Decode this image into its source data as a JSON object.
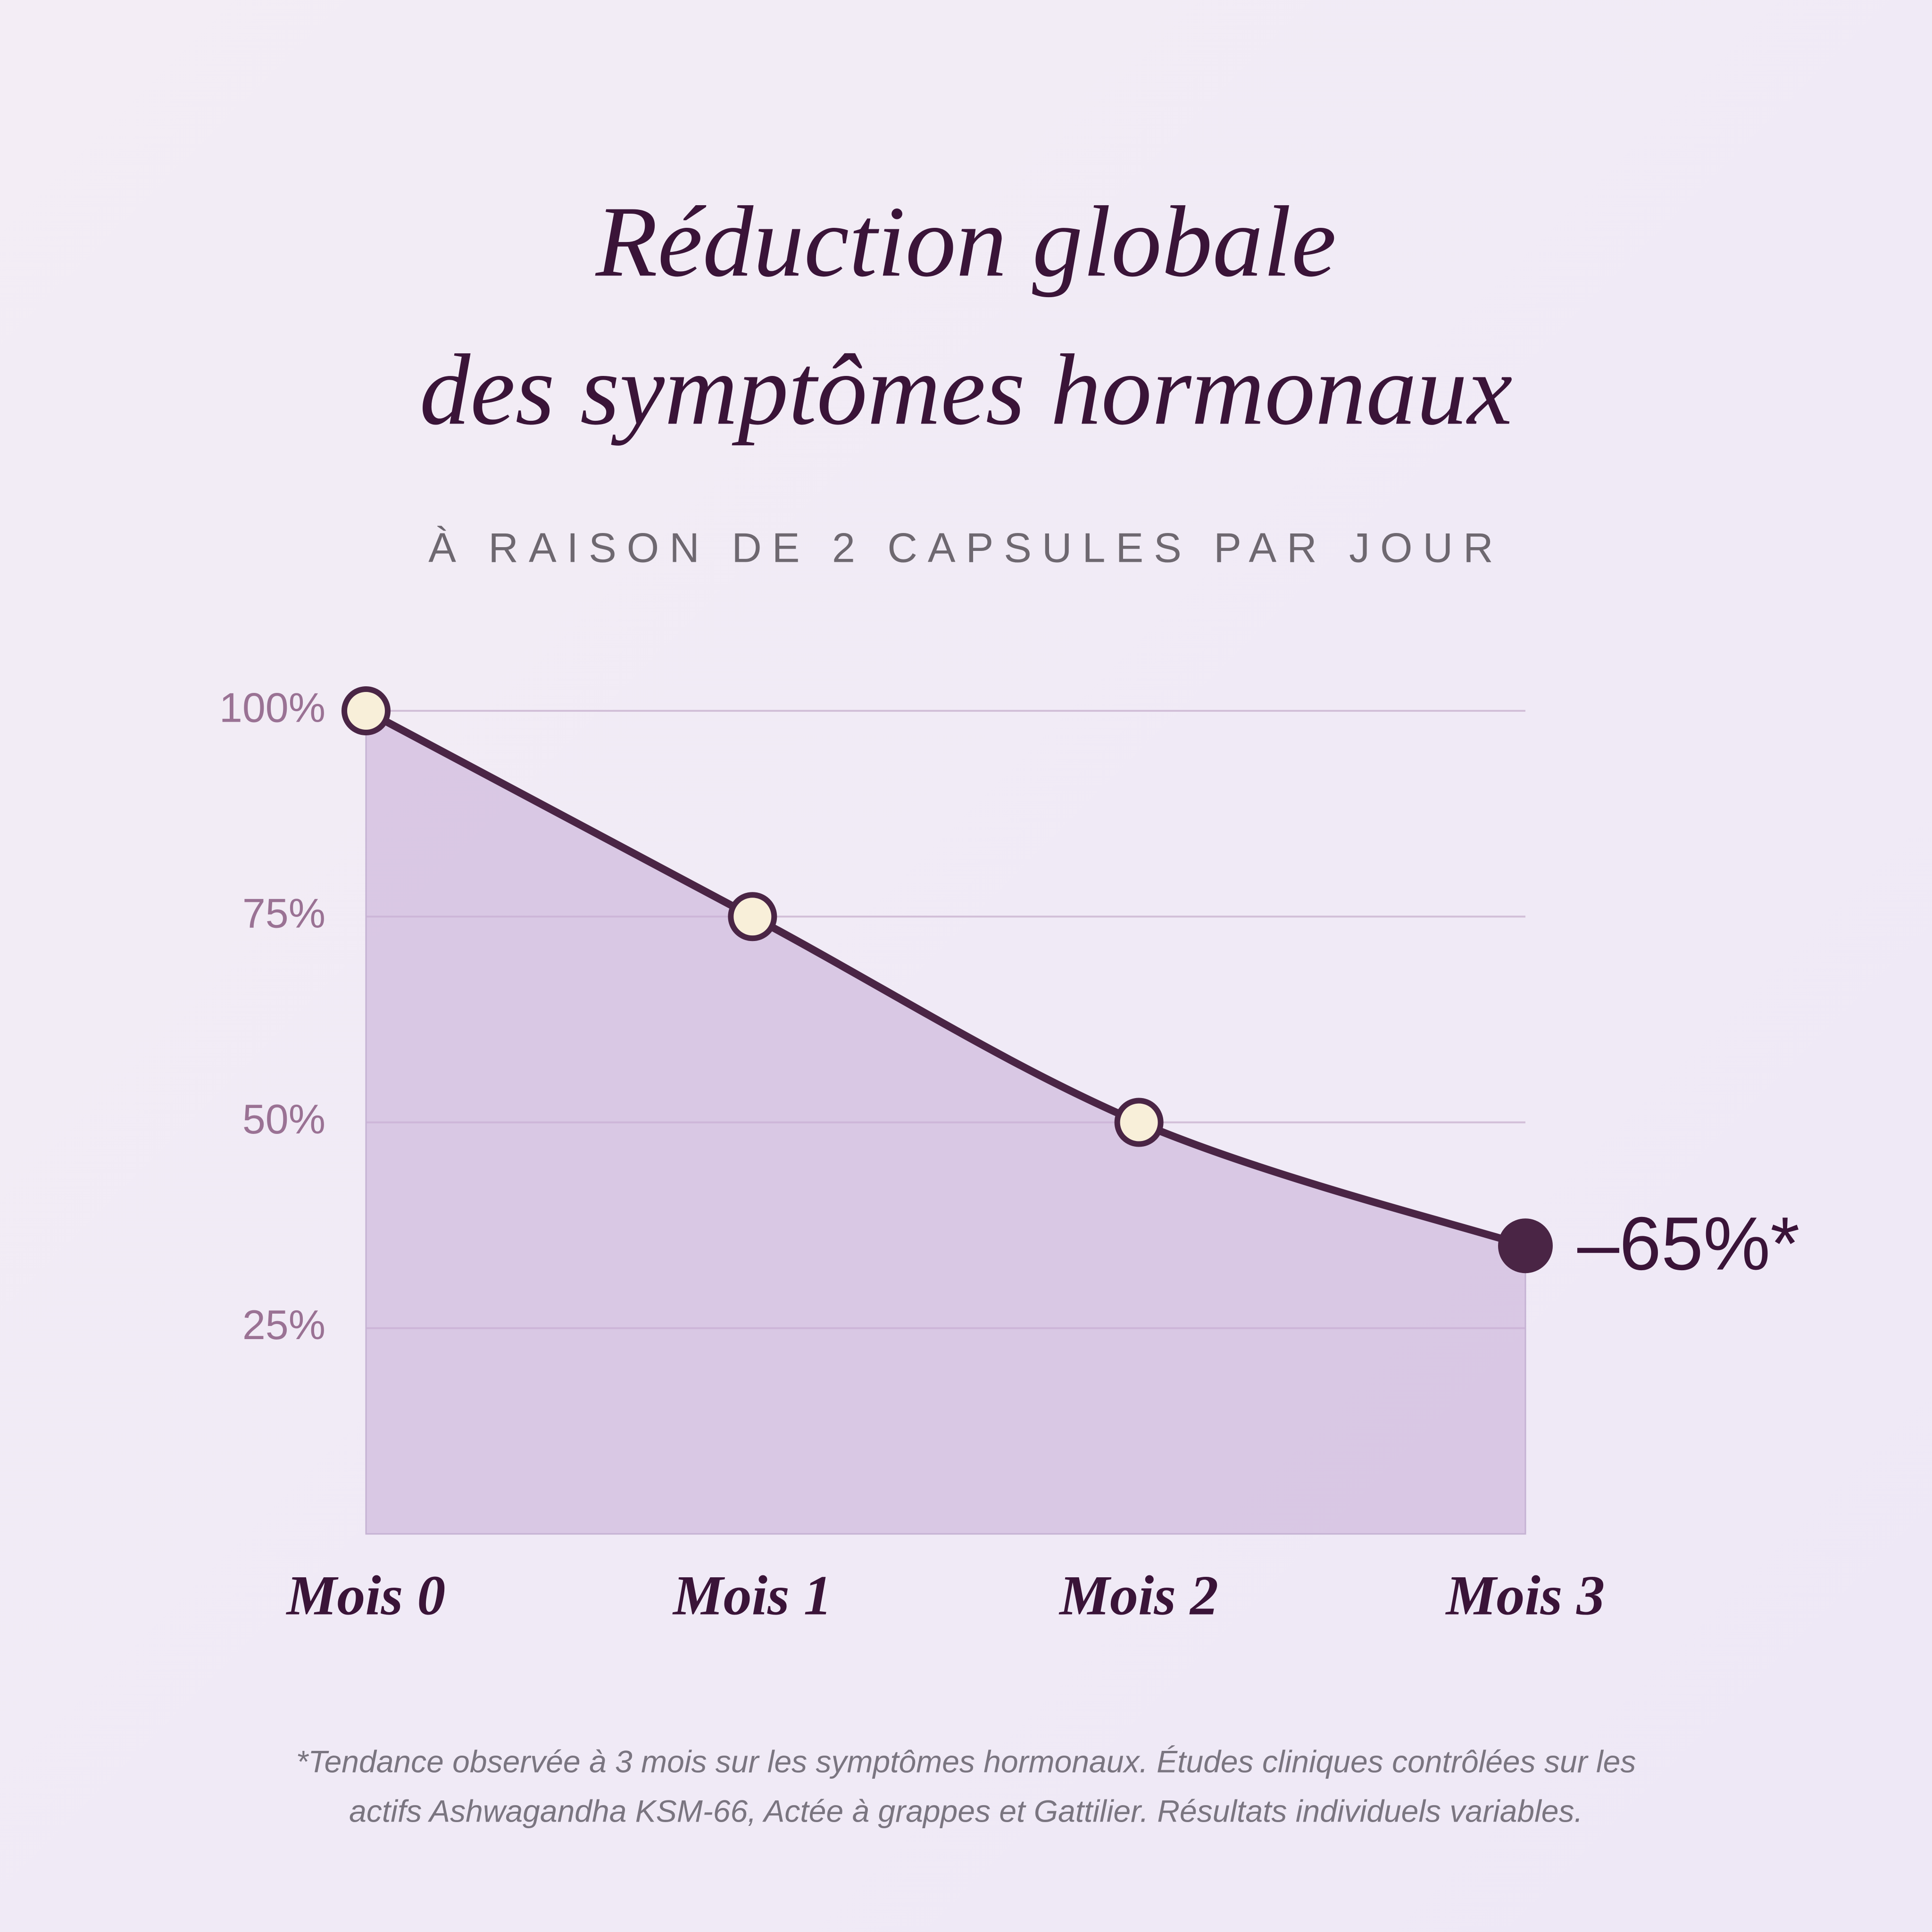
{
  "chart_data": {
    "type": "line",
    "title": [
      "Réduction globale",
      "des symptômes hormonaux"
    ],
    "subtitle": "À RAISON DE 2 CAPSULES PAR JOUR",
    "categories": [
      "Mois 0",
      "Mois 1",
      "Mois 2",
      "Mois 3"
    ],
    "series": [
      {
        "name": "Symptômes hormonaux",
        "color": "#4a2545",
        "values": [
          100,
          75,
          50,
          35
        ]
      }
    ],
    "ylim": [
      0,
      100
    ],
    "yticks": [
      {
        "value": 25,
        "label": "25%"
      },
      {
        "value": 50,
        "label": "50%"
      },
      {
        "value": 75,
        "label": "75%"
      },
      {
        "value": 100,
        "label": "100%"
      }
    ],
    "grid": true,
    "annotation": "–65%*",
    "footnote": [
      "*Tendance observée à 3 mois sur les symptômes hormonaux. Études cliniques contrôlées sur les",
      "actifs Ashwagandha KSM-66, Actée à grappes et Gattilier. Résultats individuels variables."
    ]
  }
}
